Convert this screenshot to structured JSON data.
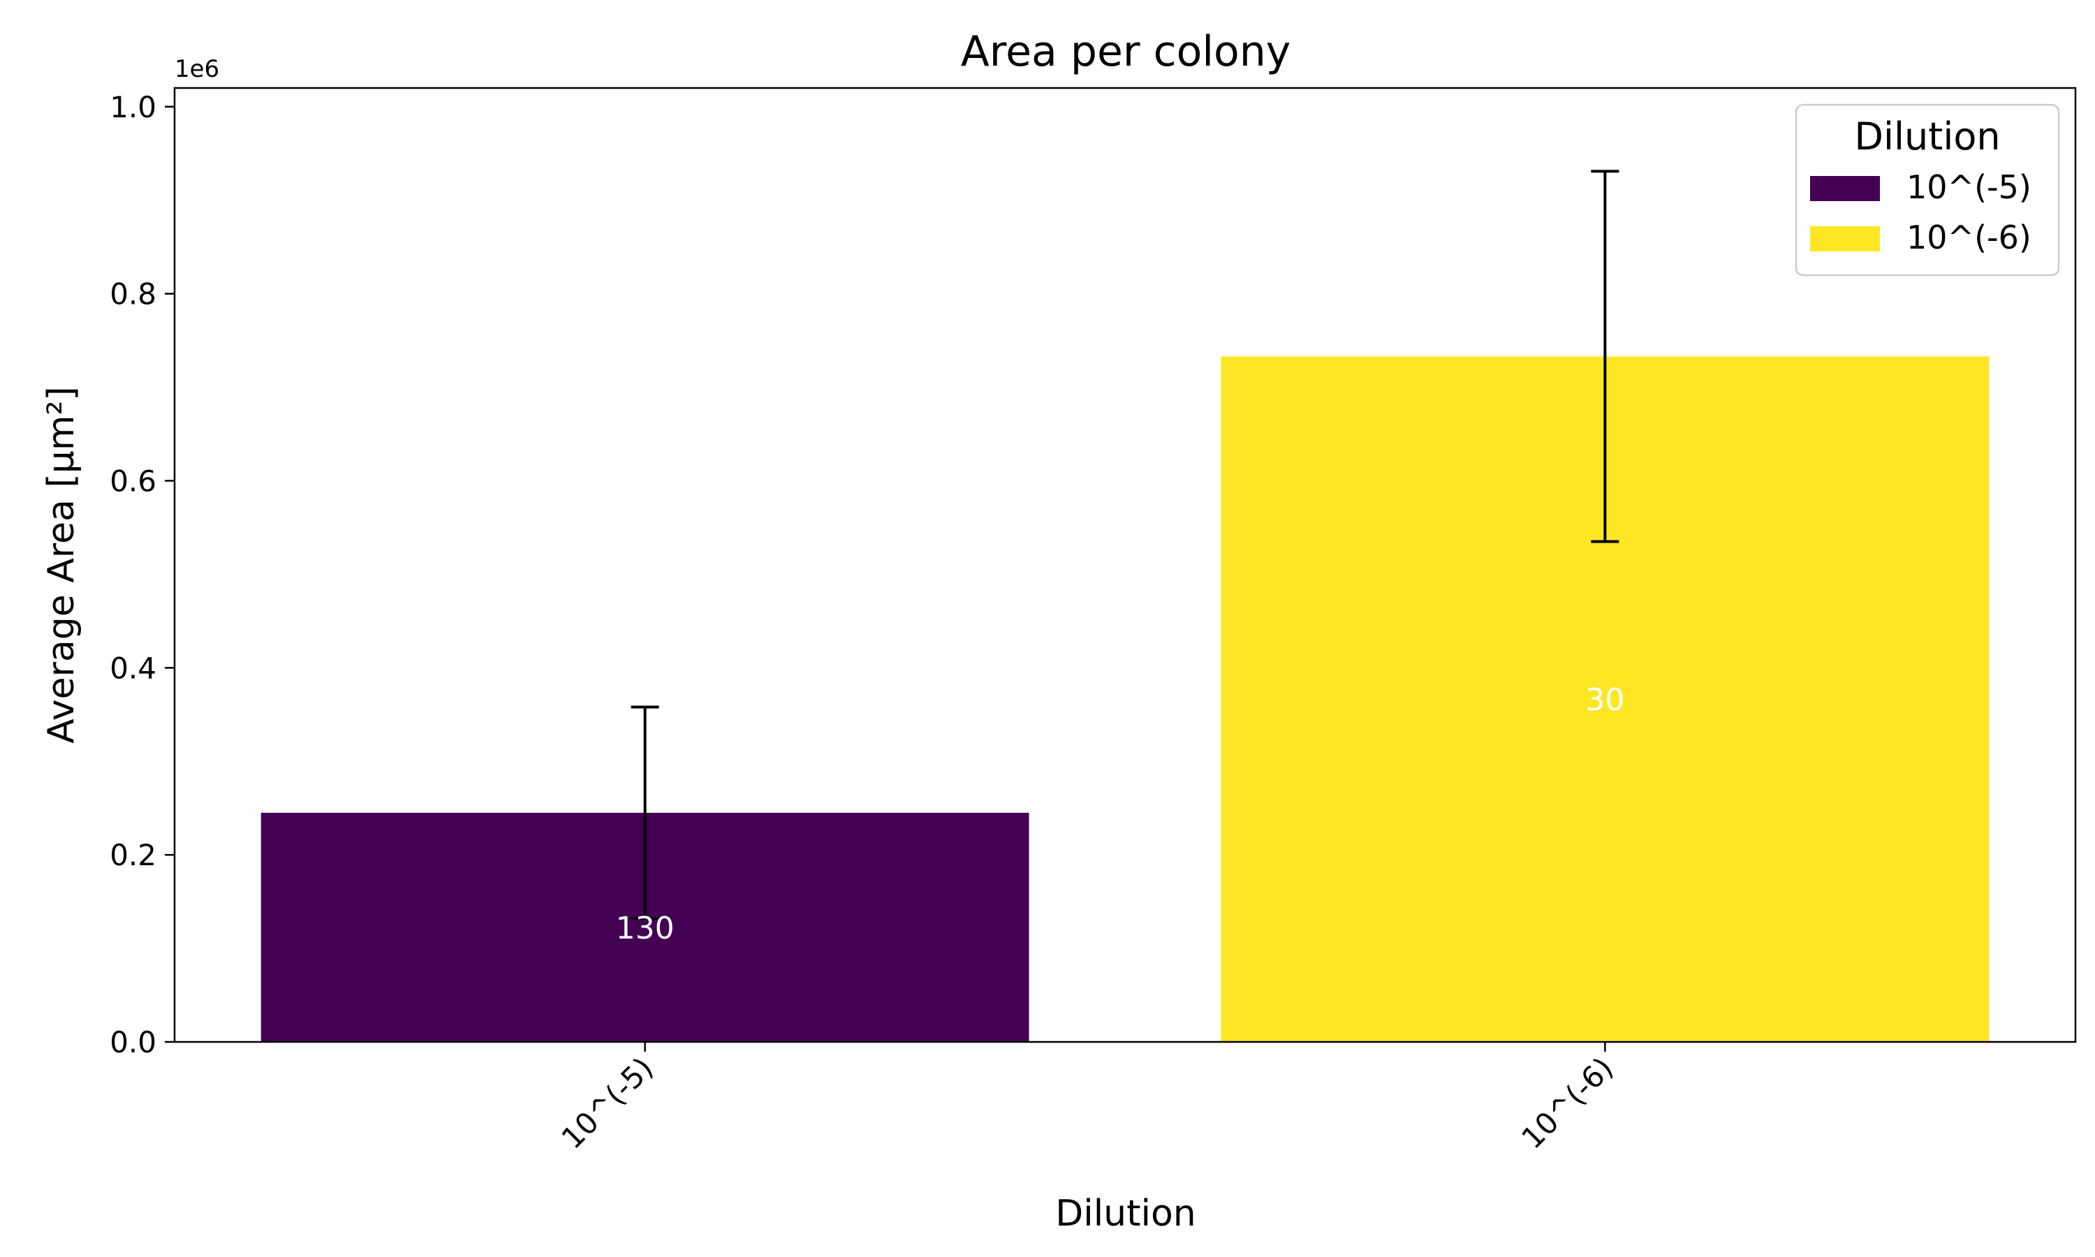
{
  "chart_data": {
    "type": "bar",
    "title": "Area per colony",
    "xlabel": "Dilution",
    "ylabel": "Average Area [μm²]",
    "y_offset_label": "1e6",
    "categories": [
      "10^(-5)",
      "10^(-6)"
    ],
    "values": [
      245000,
      733000
    ],
    "errors": [
      113000,
      198000
    ],
    "bar_labels": [
      "130",
      "30"
    ],
    "bar_colors": [
      "#440154",
      "#fde725"
    ],
    "ylim": [
      0,
      1020000
    ],
    "yticks": [
      0,
      200000,
      400000,
      600000,
      800000,
      1000000
    ],
    "ytick_labels": [
      "0.0",
      "0.2",
      "0.4",
      "0.6",
      "0.8",
      "1.0"
    ],
    "grid": false,
    "legend": {
      "title": "Dilution",
      "placement": "top-right",
      "entries": [
        {
          "label": "10^(-5)",
          "color": "#440154"
        },
        {
          "label": "10^(-6)",
          "color": "#fde725"
        }
      ]
    }
  }
}
